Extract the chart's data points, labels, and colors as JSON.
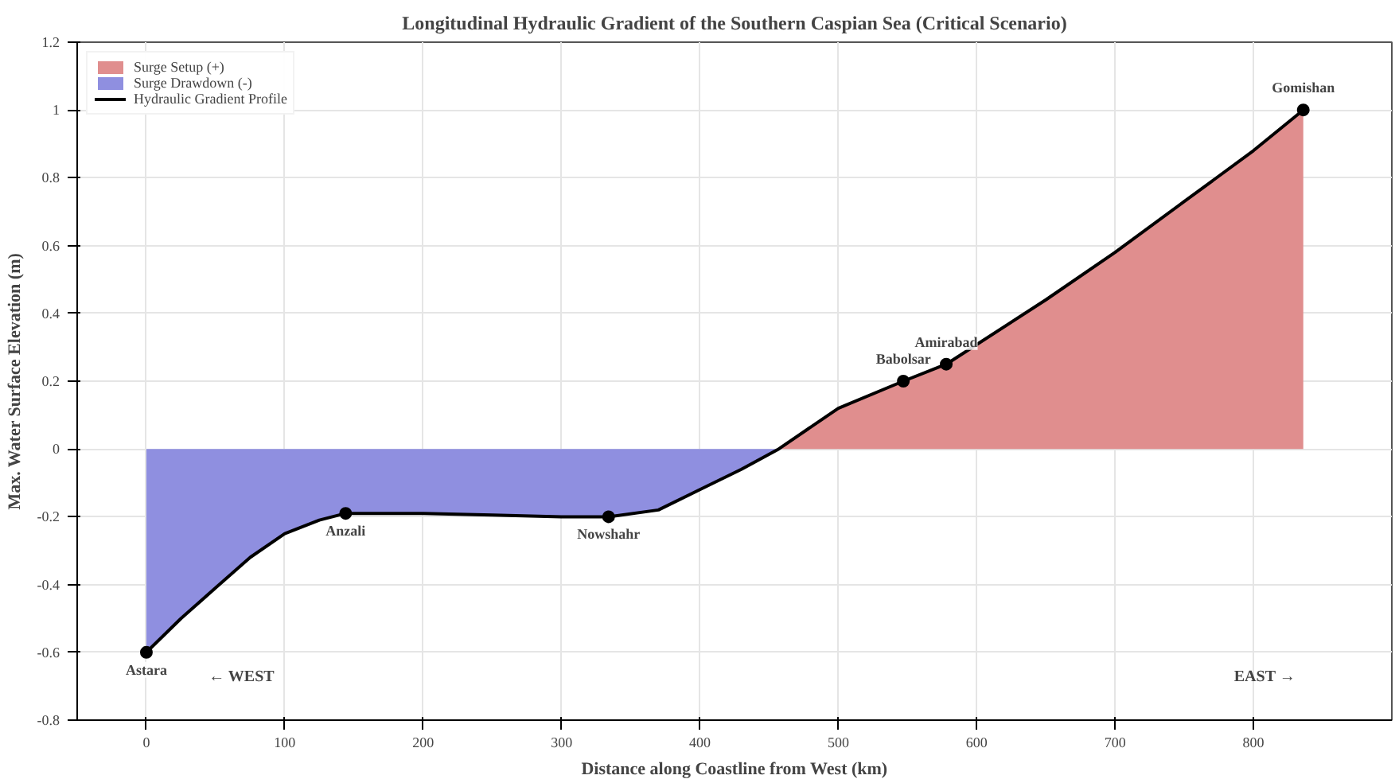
{
  "chart_data": {
    "type": "line",
    "title": "Longitudinal Hydraulic Gradient of the Southern Caspian Sea (Critical Scenario)",
    "xlabel": "Distance along Coastline from West (km)",
    "ylabel": "Max. Water Surface Elevation (m)",
    "xlim": [
      -50,
      900
    ],
    "xticks": [
      0,
      100,
      200,
      300,
      400,
      500,
      600,
      700,
      800
    ],
    "ylim": [
      -0.8,
      1.2
    ],
    "yticks": [
      -0.8,
      -0.6,
      -0.4,
      -0.2,
      0,
      0.2,
      0.4,
      0.6,
      0.8,
      1,
      1.2
    ],
    "grid": true,
    "legend": "top left",
    "series": [
      {
        "name": "Surge Setup (+)",
        "type": "area",
        "color": "#e08e8e",
        "x": [
          457,
          500,
          547,
          578,
          650,
          700,
          750,
          800,
          836
        ],
        "values": [
          0,
          0.12,
          0.2,
          0.25,
          0.44,
          0.58,
          0.73,
          0.88,
          1.0
        ]
      },
      {
        "name": "Surge Drawdown (-)",
        "type": "area",
        "color": "#8f8fe0",
        "x": [
          0,
          25,
          50,
          75,
          100,
          125,
          144,
          200,
          250,
          300,
          334,
          370,
          400,
          430,
          457
        ],
        "values": [
          -0.6,
          -0.5,
          -0.41,
          -0.32,
          -0.25,
          -0.21,
          -0.19,
          -0.19,
          -0.195,
          -0.2,
          -0.2,
          -0.18,
          -0.12,
          -0.06,
          0
        ]
      },
      {
        "name": "Hydraulic Gradient Profile",
        "color": "#000000",
        "x": [
          0,
          25,
          50,
          75,
          100,
          125,
          144,
          200,
          250,
          300,
          334,
          370,
          400,
          430,
          457,
          500,
          547,
          578,
          650,
          700,
          750,
          800,
          836
        ],
        "values": [
          -0.6,
          -0.5,
          -0.41,
          -0.32,
          -0.25,
          -0.21,
          -0.19,
          -0.19,
          -0.195,
          -0.2,
          -0.2,
          -0.18,
          -0.12,
          -0.06,
          0,
          0.12,
          0.2,
          0.25,
          0.44,
          0.58,
          0.73,
          0.88,
          1.0
        ]
      },
      {
        "type": "scatter",
        "color": "#000000",
        "marker": "circle",
        "x": [
          0,
          144,
          334,
          547,
          578,
          836
        ],
        "values": [
          -0.6,
          -0.19,
          -0.2,
          0.2,
          0.25,
          1.0
        ]
      }
    ],
    "annotations": [
      {
        "text": "Astara",
        "x": 0,
        "y": -0.6
      },
      {
        "text": "Anzali",
        "x": 144,
        "y": -0.19
      },
      {
        "text": "Nowshahr",
        "x": 334,
        "y": -0.2
      },
      {
        "text": "Babolsar",
        "x": 547,
        "y": 0.2
      },
      {
        "text": "Amirabad",
        "x": 578,
        "y": 0.25
      },
      {
        "text": "Gomishan",
        "x": 836,
        "y": 1.0
      },
      "← WEST",
      "EAST →"
    ]
  }
}
